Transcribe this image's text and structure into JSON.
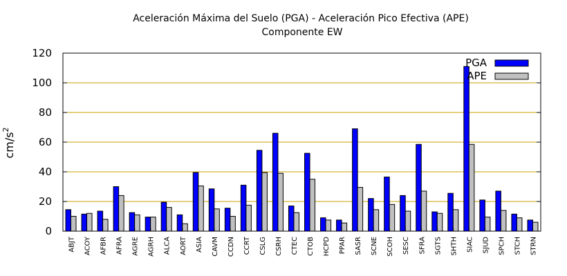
{
  "chart_data": {
    "type": "bar",
    "title": "Aceleración Máxima del Suelo (PGA) -  Aceleración Pico Efectiva (APE)",
    "subtitle": "Componente EW",
    "xlabel": "",
    "ylabel": "cm/s",
    "ylabel_superscript": "2",
    "ylim": [
      0,
      120
    ],
    "yticks": [
      "0",
      "20",
      "40",
      "60",
      "80",
      "100",
      "120"
    ],
    "grid": "horizontal",
    "legend_position": "top-right",
    "categories": [
      "ABJT",
      "ACOY",
      "AFBR",
      "AFRA",
      "AGRE",
      "AGRH",
      "ALCA",
      "AORT",
      "ASIA",
      "CAVM",
      "CCDN",
      "CCRT",
      "CSLG",
      "CSRH",
      "CTEC",
      "CTOB",
      "HCPD",
      "PPAR",
      "SASR",
      "SCNE",
      "SCOH",
      "SESC",
      "SFRA",
      "SGTS",
      "SHTH",
      "SIAC",
      "SJUD",
      "SPCH",
      "STCH",
      "STRN"
    ],
    "series": [
      {
        "name": "PGA",
        "color": "#0000ff",
        "values": [
          14.5,
          11.5,
          13.5,
          30,
          12.5,
          9.5,
          19.5,
          11,
          39.5,
          28.5,
          15.5,
          31,
          54.5,
          66,
          17,
          52.5,
          9,
          7.5,
          69,
          22,
          36.5,
          24,
          58.5,
          13,
          25.5,
          111,
          21,
          27,
          11.5,
          7.5
        ]
      },
      {
        "name": "APE",
        "color": "#c0c0c0",
        "values": [
          10,
          12,
          8,
          24,
          11,
          9.5,
          16,
          5,
          30.5,
          15,
          10,
          17.5,
          39.5,
          39,
          12.5,
          35,
          7.5,
          5.5,
          29.5,
          14.5,
          18,
          13.5,
          27,
          12,
          14.5,
          58.5,
          9.5,
          14,
          9,
          6
        ]
      }
    ]
  }
}
